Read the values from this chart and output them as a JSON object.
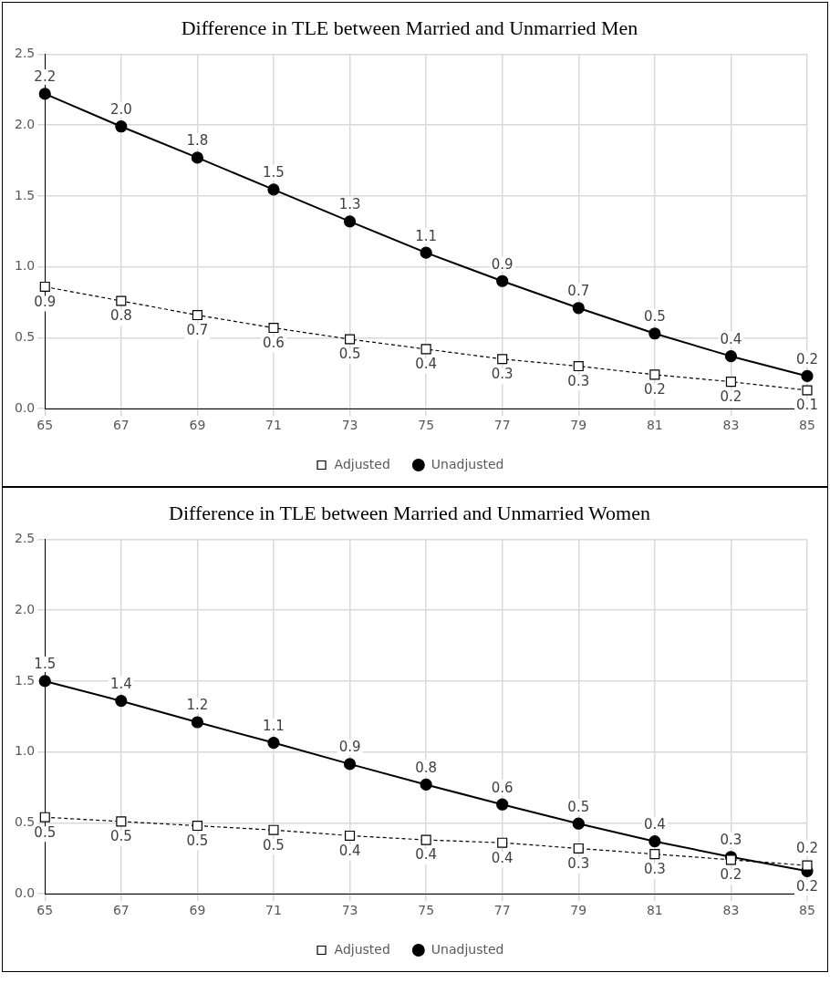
{
  "chart_data": [
    {
      "type": "line",
      "title": "Difference in TLE between Married and Unmarried Men",
      "categories": [
        "65",
        "67",
        "69",
        "71",
        "73",
        "75",
        "77",
        "79",
        "81",
        "83",
        "85"
      ],
      "series": [
        {
          "name": "Adjusted",
          "color": "#000000",
          "marker": "square",
          "line_style": "dashed",
          "values": [
            0.86,
            0.76,
            0.66,
            0.57,
            0.49,
            0.42,
            0.35,
            0.3,
            0.24,
            0.19,
            0.13
          ],
          "value_labels": [
            "0.9",
            "0.8",
            "0.7",
            "0.6",
            "0.5",
            "0.4",
            "0.3",
            "0.3",
            "0.2",
            "0.2",
            "0.1"
          ]
        },
        {
          "name": "Unadjusted",
          "color": "#000000",
          "marker": "circle",
          "line_style": "solid",
          "values": [
            2.22,
            1.99,
            1.77,
            1.545,
            1.32,
            1.1,
            0.9,
            0.71,
            0.53,
            0.37,
            0.23
          ],
          "value_labels": [
            "2.2",
            "2.0",
            "1.8",
            "1.5",
            "1.3",
            "1.1",
            "0.9",
            "0.7",
            "0.5",
            "0.4",
            "0.2"
          ]
        }
      ],
      "ylim": [
        0,
        2.5
      ],
      "yticks": [
        {
          "value": 0,
          "label": "0.0"
        },
        {
          "value": 0.5,
          "label": "0.5"
        },
        {
          "value": 1,
          "label": "1.0"
        },
        {
          "value": 1.5,
          "label": "1.5"
        },
        {
          "value": 2,
          "label": "2.0"
        },
        {
          "value": 2.5,
          "label": "2.5"
        }
      ],
      "grid": true,
      "legend": "bottom"
    },
    {
      "type": "line",
      "title": "Difference in TLE between Married and Unmarried Women",
      "categories": [
        "65",
        "67",
        "69",
        "71",
        "73",
        "75",
        "77",
        "79",
        "81",
        "83",
        "85"
      ],
      "series": [
        {
          "name": "Adjusted",
          "color": "#000000",
          "marker": "square",
          "line_style": "dashed",
          "values": [
            0.54,
            0.51,
            0.48,
            0.45,
            0.41,
            0.38,
            0.36,
            0.32,
            0.28,
            0.24,
            0.2
          ],
          "value_labels": [
            "0.5",
            "0.5",
            "0.5",
            "0.5",
            "0.4",
            "0.4",
            "0.4",
            "0.3",
            "0.3",
            "0.2",
            "0.2"
          ]
        },
        {
          "name": "Unadjusted",
          "color": "#000000",
          "marker": "circle",
          "line_style": "solid",
          "values": [
            1.5,
            1.36,
            1.21,
            1.065,
            0.915,
            0.77,
            0.63,
            0.495,
            0.37,
            0.26,
            0.16
          ],
          "value_labels": [
            "1.5",
            "1.4",
            "1.2",
            "1.1",
            "0.9",
            "0.8",
            "0.6",
            "0.5",
            "0.4",
            "0.3",
            "0.2"
          ]
        }
      ],
      "ylim": [
        0,
        2.5
      ],
      "yticks": [
        {
          "value": 0,
          "label": "0.0"
        },
        {
          "value": 0.5,
          "label": "0.5"
        },
        {
          "value": 1,
          "label": "1.0"
        },
        {
          "value": 1.5,
          "label": "1.5"
        },
        {
          "value": 2,
          "label": "2.0"
        },
        {
          "value": 2.5,
          "label": "2.5"
        }
      ],
      "grid": true,
      "legend": "bottom"
    }
  ]
}
